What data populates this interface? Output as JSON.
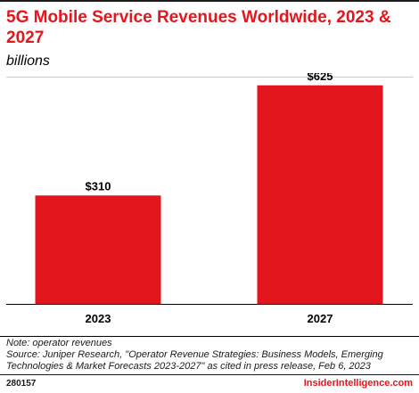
{
  "header": {
    "title": "5G Mobile Service Revenues Worldwide, 2023 & 2027",
    "subtitle": "billions"
  },
  "chart_data": {
    "type": "bar",
    "categories": [
      "2023",
      "2027"
    ],
    "values": [
      310,
      625
    ],
    "value_labels": [
      "$310",
      "$625"
    ],
    "ylim": [
      0,
      660
    ],
    "grid": false,
    "legend": "none"
  },
  "footer": {
    "note": "Note: operator revenues",
    "source": "Source: Juniper Research, \"Operator Revenue Strategies: Business Models, Emerging Technologies & Market Forecasts 2023-2027\" as cited in press release, Feb 6, 2023",
    "chart_id": "280157",
    "brand": "InsiderIntelligence.com"
  },
  "colors": {
    "bar": "#e4161d",
    "title": "#e4161d",
    "text": "#000000",
    "rule": "#1a1a1a"
  }
}
